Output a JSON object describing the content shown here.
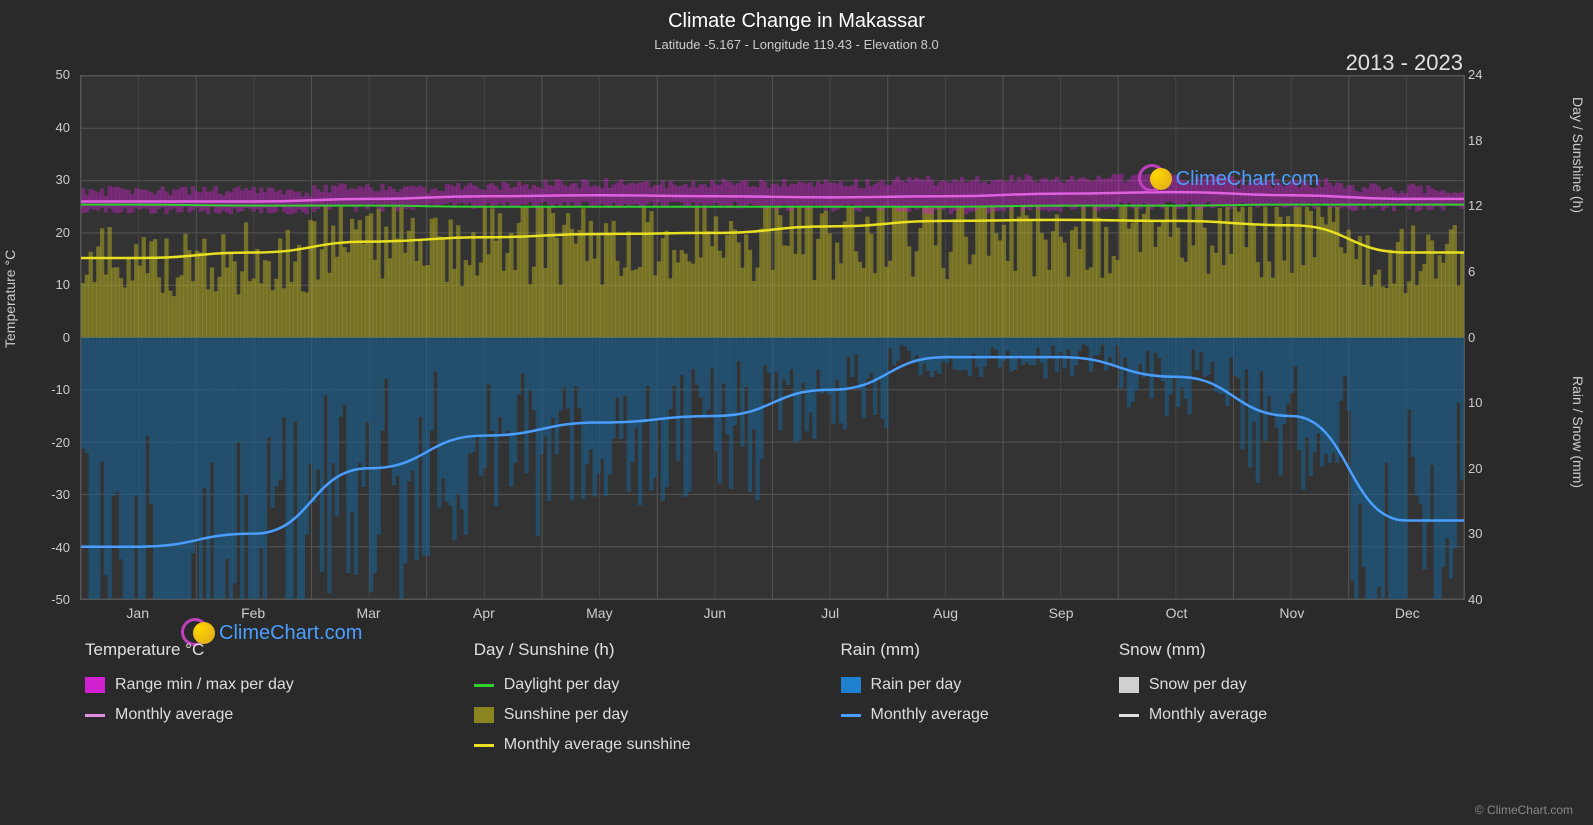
{
  "title": "Climate Change in Makassar",
  "subtitle": "Latitude -5.167 - Longitude 119.43 - Elevation 8.0",
  "year_range": "2013 - 2023",
  "logo_text": "ClimeChart.com",
  "copyright": "© ClimeChart.com",
  "chart": {
    "background_color": "#333333",
    "page_background": "#2a2a2a",
    "grid_color": "#555555",
    "text_color": "#cccccc",
    "left_axis": {
      "label": "Temperature °C",
      "min": -50,
      "max": 50,
      "ticks": [
        -50,
        -40,
        -30,
        -20,
        -10,
        0,
        10,
        20,
        30,
        40,
        50
      ]
    },
    "right_axis_top": {
      "label": "Day / Sunshine (h)",
      "min": 0,
      "max": 24,
      "ticks": [
        0,
        6,
        12,
        18,
        24
      ]
    },
    "right_axis_bottom": {
      "label": "Rain / Snow (mm)",
      "min": 0,
      "max": 40,
      "ticks": [
        0,
        10,
        20,
        30,
        40
      ]
    },
    "months": [
      "Jan",
      "Feb",
      "Mar",
      "Apr",
      "May",
      "Jun",
      "Jul",
      "Aug",
      "Sep",
      "Oct",
      "Nov",
      "Dec"
    ],
    "series": {
      "temp_range": {
        "color": "#d020d0",
        "min_line": [
          25,
          25,
          25.5,
          26,
          26,
          26,
          25.5,
          25,
          25.5,
          26,
          26,
          25.5
        ],
        "max_line": [
          27,
          27,
          27.5,
          28,
          28.5,
          28.5,
          28.5,
          29,
          29.5,
          29.5,
          28.5,
          27.5
        ]
      },
      "temp_monthly": {
        "color": "#e060e0",
        "values": [
          26,
          26,
          26.5,
          27,
          27.2,
          27,
          26.8,
          27,
          27.5,
          27.8,
          27.2,
          26.5
        ]
      },
      "daylight": {
        "color": "#30d030",
        "values": [
          12.2,
          12.1,
          12.1,
          12.0,
          12.0,
          12.0,
          12.0,
          12.0,
          12.1,
          12.1,
          12.2,
          12.2
        ]
      },
      "sunshine_area": {
        "color": "#b8b020",
        "color_alpha": "rgba(184,176,32,0.5)",
        "values_h": [
          11,
          11,
          11,
          11,
          11,
          11,
          11,
          11,
          11,
          11,
          11,
          11
        ]
      },
      "sunshine_monthly": {
        "color": "#e8e020",
        "values_h": [
          7.3,
          7.8,
          8.8,
          9.2,
          9.5,
          9.6,
          10.2,
          10.7,
          10.8,
          10.7,
          10.3,
          7.8
        ]
      },
      "rain_area": {
        "color": "#1a5f8f",
        "color_alpha": "rgba(26,95,143,0.6)"
      },
      "rain_monthly": {
        "color": "#4a9eff",
        "values_mm": [
          32,
          30,
          20,
          15,
          13,
          12,
          8,
          3,
          3,
          6,
          12,
          28
        ]
      },
      "snow_monthly": {
        "color": "#d0d0d0",
        "values_mm": [
          0,
          0,
          0,
          0,
          0,
          0,
          0,
          0,
          0,
          0,
          0,
          0
        ]
      }
    }
  },
  "legend": {
    "temp": {
      "header": "Temperature °C",
      "items": [
        {
          "swatch_color": "#d020d0",
          "type": "block",
          "label": "Range min / max per day"
        },
        {
          "swatch_color": "#e090e0",
          "type": "line",
          "label": "Monthly average"
        }
      ]
    },
    "day": {
      "header": "Day / Sunshine (h)",
      "items": [
        {
          "swatch_color": "#30d030",
          "type": "line",
          "label": "Daylight per day"
        },
        {
          "swatch_color": "#8a8520",
          "type": "block",
          "label": "Sunshine per day"
        },
        {
          "swatch_color": "#e8e020",
          "type": "line",
          "label": "Monthly average sunshine"
        }
      ]
    },
    "rain": {
      "header": "Rain (mm)",
      "items": [
        {
          "swatch_color": "#2080d0",
          "type": "block",
          "label": "Rain per day"
        },
        {
          "swatch_color": "#4a9eff",
          "type": "line",
          "label": "Monthly average"
        }
      ]
    },
    "snow": {
      "header": "Snow (mm)",
      "items": [
        {
          "swatch_color": "#d0d0d0",
          "type": "block",
          "label": "Snow per day"
        },
        {
          "swatch_color": "#e0e0e0",
          "type": "line",
          "label": "Monthly average"
        }
      ]
    }
  }
}
